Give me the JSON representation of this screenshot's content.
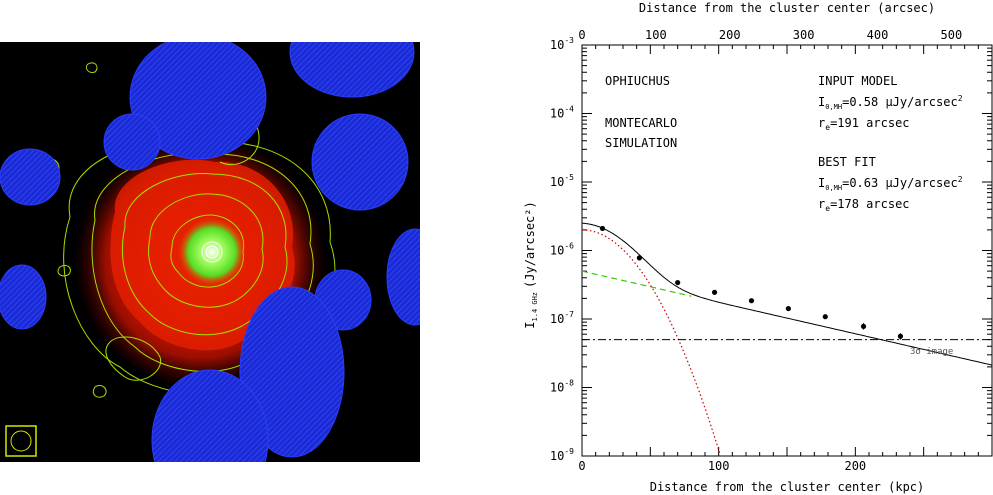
{
  "image_panel": {
    "description_colors": {
      "background": "#000000",
      "halo": "#cc1a00",
      "core": "#66ff33",
      "contours": "#a6e000",
      "masks": "#1a2bd6"
    }
  },
  "chart_data": {
    "type": "line",
    "x_top_label": "Distance from the cluster center (arcsec)",
    "x_top_ticks": [
      "0",
      "100",
      "200",
      "300",
      "400",
      "500"
    ],
    "xlabel": "Distance from the cluster center (kpc)",
    "x_ticks": [
      "0",
      "100",
      "200"
    ],
    "ylabel": "I",
    "ylabel_sub": "1.4 GHz",
    "ylabel_unit": "(Jy/arcsec²)",
    "y_ticks": [
      {
        "base": "10",
        "exp": "-9",
        "val": -9
      },
      {
        "base": "10",
        "exp": "-8",
        "val": -8
      },
      {
        "base": "10",
        "exp": "-7",
        "val": -7
      },
      {
        "base": "10",
        "exp": "-6",
        "val": -6
      },
      {
        "base": "10",
        "exp": "-5",
        "val": -5
      },
      {
        "base": "10",
        "exp": "-4",
        "val": -4
      },
      {
        "base": "10",
        "exp": "-3",
        "val": -3
      }
    ],
    "xlim": [
      0,
      300
    ],
    "ylim_log10": [
      -9,
      -3
    ],
    "arcsec_per_kpc": 1.85,
    "annotations": {
      "left_title": "OPHIUCHUS",
      "left_sub1": "MONTECARLO",
      "left_sub2": "SIMULATION",
      "input_title": "INPUT MODEL",
      "input_i0_prefix": "I",
      "input_i0_sub": "0,MH",
      "input_i0_value": "=0.58 μJy/arcsec",
      "input_i0_sup": "2",
      "input_re_prefix": "r",
      "input_re_sub": "e",
      "input_re_value": "=191 arcsec",
      "fit_title": "BEST FIT",
      "fit_i0_prefix": "I",
      "fit_i0_sub": "0,MH",
      "fit_i0_value": "=0.63 μJy/arcsec",
      "fit_i0_sup": "2",
      "fit_re_prefix": "r",
      "fit_re_sub": "e",
      "fit_re_value": "=178 arcsec",
      "sigma_label": "3σ image"
    },
    "points": [
      {
        "x": 15,
        "y": 2.1e-06
      },
      {
        "x": 42,
        "y": 7.8e-07
      },
      {
        "x": 70,
        "y": 3.4e-07
      },
      {
        "x": 97,
        "y": 2.45e-07
      },
      {
        "x": 124,
        "y": 1.85e-07
      },
      {
        "x": 151,
        "y": 1.42e-07
      },
      {
        "x": 178,
        "y": 1.08e-07
      },
      {
        "x": 206,
        "y": 7.8e-08
      },
      {
        "x": 233,
        "y": 5.6e-08
      }
    ],
    "errors_kpc": [
      {
        "x": 206,
        "low": 7e-08,
        "high": 8.7e-08
      },
      {
        "x": 233,
        "low": 5e-08,
        "high": 6.2e-08
      }
    ],
    "models": {
      "halo": {
        "I0": 5e-07,
        "scale_kpc": 95,
        "color": "#33cc00"
      },
      "core": {
        "I0": 2e-06,
        "sigma_kpc": 26,
        "color": "#cc0000"
      }
    },
    "sigma_level": 5e-08
  }
}
